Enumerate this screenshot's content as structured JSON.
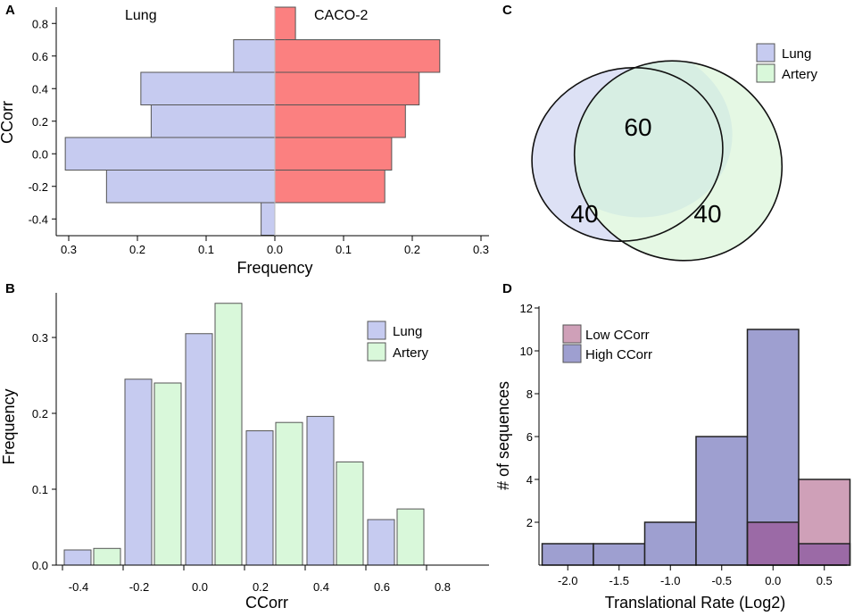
{
  "colors": {
    "lung": "#c6cbf0",
    "caco2": "#fb8080",
    "artery": "#d9f8da",
    "venn_lung": "#dde1f5",
    "venn_artery": "#e5f8e4",
    "venn_overlap": "#d7eee3",
    "low_ccorr": "#cfa0b8",
    "high_ccorr": "#9e9fd0",
    "overlap_d": "#9b6aa6",
    "bar_stroke": "#555555"
  },
  "chart_data": [
    {
      "panel": "A",
      "type": "bar",
      "orientation": "horizontal-mirrored",
      "categories": [
        "-0.4",
        "-0.2",
        "0.0",
        "0.2",
        "0.4",
        "0.6",
        "0.8"
      ],
      "series": [
        {
          "name": "Lung",
          "values": [
            0.02,
            0.245,
            0.305,
            0.18,
            0.195,
            0.06,
            0.0
          ]
        },
        {
          "name": "CACO-2",
          "values": [
            0.0,
            0.16,
            0.17,
            0.19,
            0.21,
            0.24,
            0.03
          ]
        }
      ],
      "xlabel": "Frequency",
      "ylabel": "CCorr",
      "xticks": [
        "0.3",
        "0.2",
        "0.1",
        "0.0",
        "0.1",
        "0.2",
        "0.3"
      ],
      "yticks": [
        "-0.4",
        "-0.2",
        "0.0",
        "0.2",
        "0.4",
        "0.6",
        "0.8"
      ],
      "xlim": [
        -0.3,
        0.3
      ],
      "annotations": [
        "Lung",
        "CACO-2"
      ]
    },
    {
      "panel": "B",
      "type": "bar",
      "categories": [
        "-0.4",
        "-0.2",
        "0.0",
        "0.2",
        "0.4",
        "0.6"
      ],
      "series": [
        {
          "name": "Lung",
          "values": [
            0.02,
            0.245,
            0.305,
            0.177,
            0.196,
            0.06
          ]
        },
        {
          "name": "Artery",
          "values": [
            0.022,
            0.24,
            0.345,
            0.188,
            0.136,
            0.074
          ]
        }
      ],
      "xlabel": "CCorr",
      "ylabel": "Frequency",
      "xticks": [
        "-0.4",
        "-0.2",
        "0.0",
        "0.2",
        "0.4",
        "0.6",
        "0.8"
      ],
      "yticks": [
        "0.0",
        "0.1",
        "0.2",
        "0.3"
      ],
      "ylim": [
        0,
        0.36
      ],
      "legend": [
        "Lung",
        "Artery"
      ],
      "legend_position": "top-right"
    },
    {
      "panel": "C",
      "type": "venn",
      "sets": [
        "Lung",
        "Artery"
      ],
      "counts": {
        "lung_only": "40",
        "overlap": "60",
        "artery_only": "40"
      },
      "legend": [
        "Lung",
        "Artery"
      ],
      "legend_position": "top-right"
    },
    {
      "panel": "D",
      "type": "bar",
      "style": "histogram-overlaid",
      "bins": [
        "-2.0",
        "-1.5",
        "-1.0",
        "-0.5",
        "0.0",
        "0.5"
      ],
      "bin_centers": [
        -2.0,
        -1.5,
        -1.0,
        -0.5,
        0.0,
        0.5
      ],
      "bin_width": 0.5,
      "series": [
        {
          "name": "Low CCorr",
          "values": [
            0,
            0,
            0,
            0,
            2,
            4
          ]
        },
        {
          "name": "High CCorr",
          "values": [
            1,
            1,
            2,
            6,
            11,
            1
          ]
        }
      ],
      "xlabel": "Translational Rate (Log2)",
      "ylabel": "# of sequences",
      "xticks": [
        "-2.0",
        "-1.5",
        "-1.0",
        "-0.5",
        "0.0",
        "0.5"
      ],
      "yticks": [
        "2",
        "4",
        "6",
        "8",
        "10",
        "12"
      ],
      "xlim": [
        -2.25,
        0.75
      ],
      "ylim": [
        0,
        12
      ],
      "legend": [
        "Low CCorr",
        "High CCorr"
      ],
      "legend_position": "top-left"
    }
  ]
}
